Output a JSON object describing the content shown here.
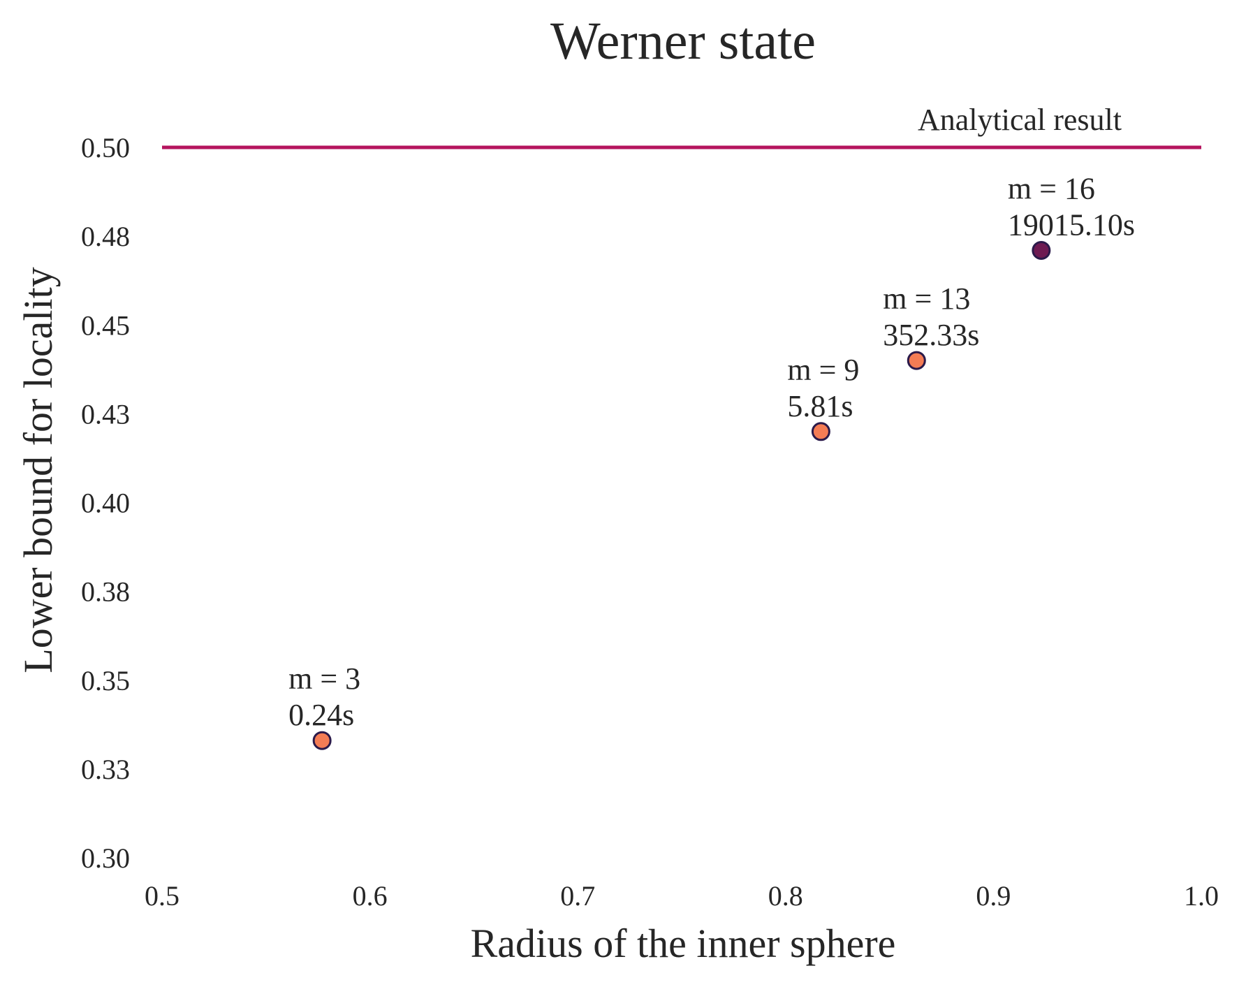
{
  "chart_data": {
    "type": "scatter",
    "title": "Werner state",
    "xlabel": "Radius of the inner sphere",
    "ylabel": "Lower bound for locality",
    "xlim": [
      0.5,
      1.0
    ],
    "ylim": [
      0.3,
      0.5
    ],
    "x_ticks": [
      0.5,
      0.6,
      0.7,
      0.8,
      0.9,
      1.0
    ],
    "x_tick_labels": [
      "0.5",
      "0.6",
      "0.7",
      "0.8",
      "0.9",
      "1.0"
    ],
    "y_ticks": [
      0.3,
      0.325,
      0.35,
      0.375,
      0.4,
      0.425,
      0.45,
      0.475,
      0.5
    ],
    "y_tick_labels": [
      "0.30",
      "0.33",
      "0.35",
      "0.38",
      "0.40",
      "0.43",
      "0.45",
      "0.48",
      "0.50"
    ],
    "grid": false,
    "reference_line": {
      "y": 0.5,
      "label": "Analytical result",
      "color": "#b5145e"
    },
    "points": [
      {
        "x": 0.577,
        "y": 0.333,
        "m_label": "m = 3",
        "time_label": "0.24s",
        "color": "#f47c55"
      },
      {
        "x": 0.817,
        "y": 0.42,
        "m_label": "m = 9",
        "time_label": "5.81s",
        "color": "#f47c55"
      },
      {
        "x": 0.863,
        "y": 0.44,
        "m_label": "m = 13",
        "time_label": "352.33s",
        "color": "#f47c55"
      },
      {
        "x": 0.923,
        "y": 0.471,
        "m_label": "m = 16",
        "time_label": "19015.10s",
        "color": "#6e1a52"
      }
    ],
    "marker_edge_color": "#2b1a4a"
  }
}
